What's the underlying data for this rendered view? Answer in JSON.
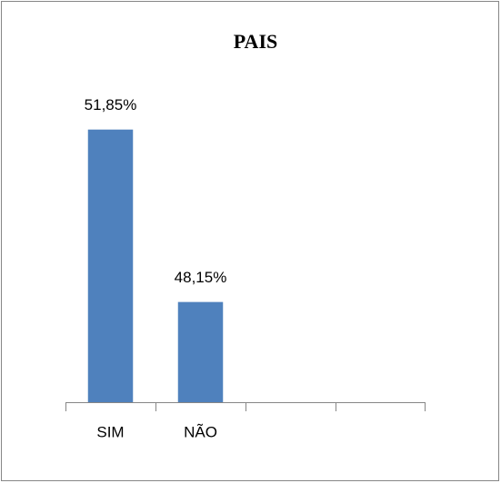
{
  "chart_data": {
    "type": "bar",
    "title": "PAIS",
    "categories": [
      "SIM",
      "NÃO",
      null,
      null
    ],
    "values": [
      51.85,
      48.15,
      null,
      null
    ],
    "value_labels": [
      "51,85%",
      "48,15%",
      null,
      null
    ],
    "color": "#4f81bd",
    "ylim": [
      46,
      52
    ]
  }
}
